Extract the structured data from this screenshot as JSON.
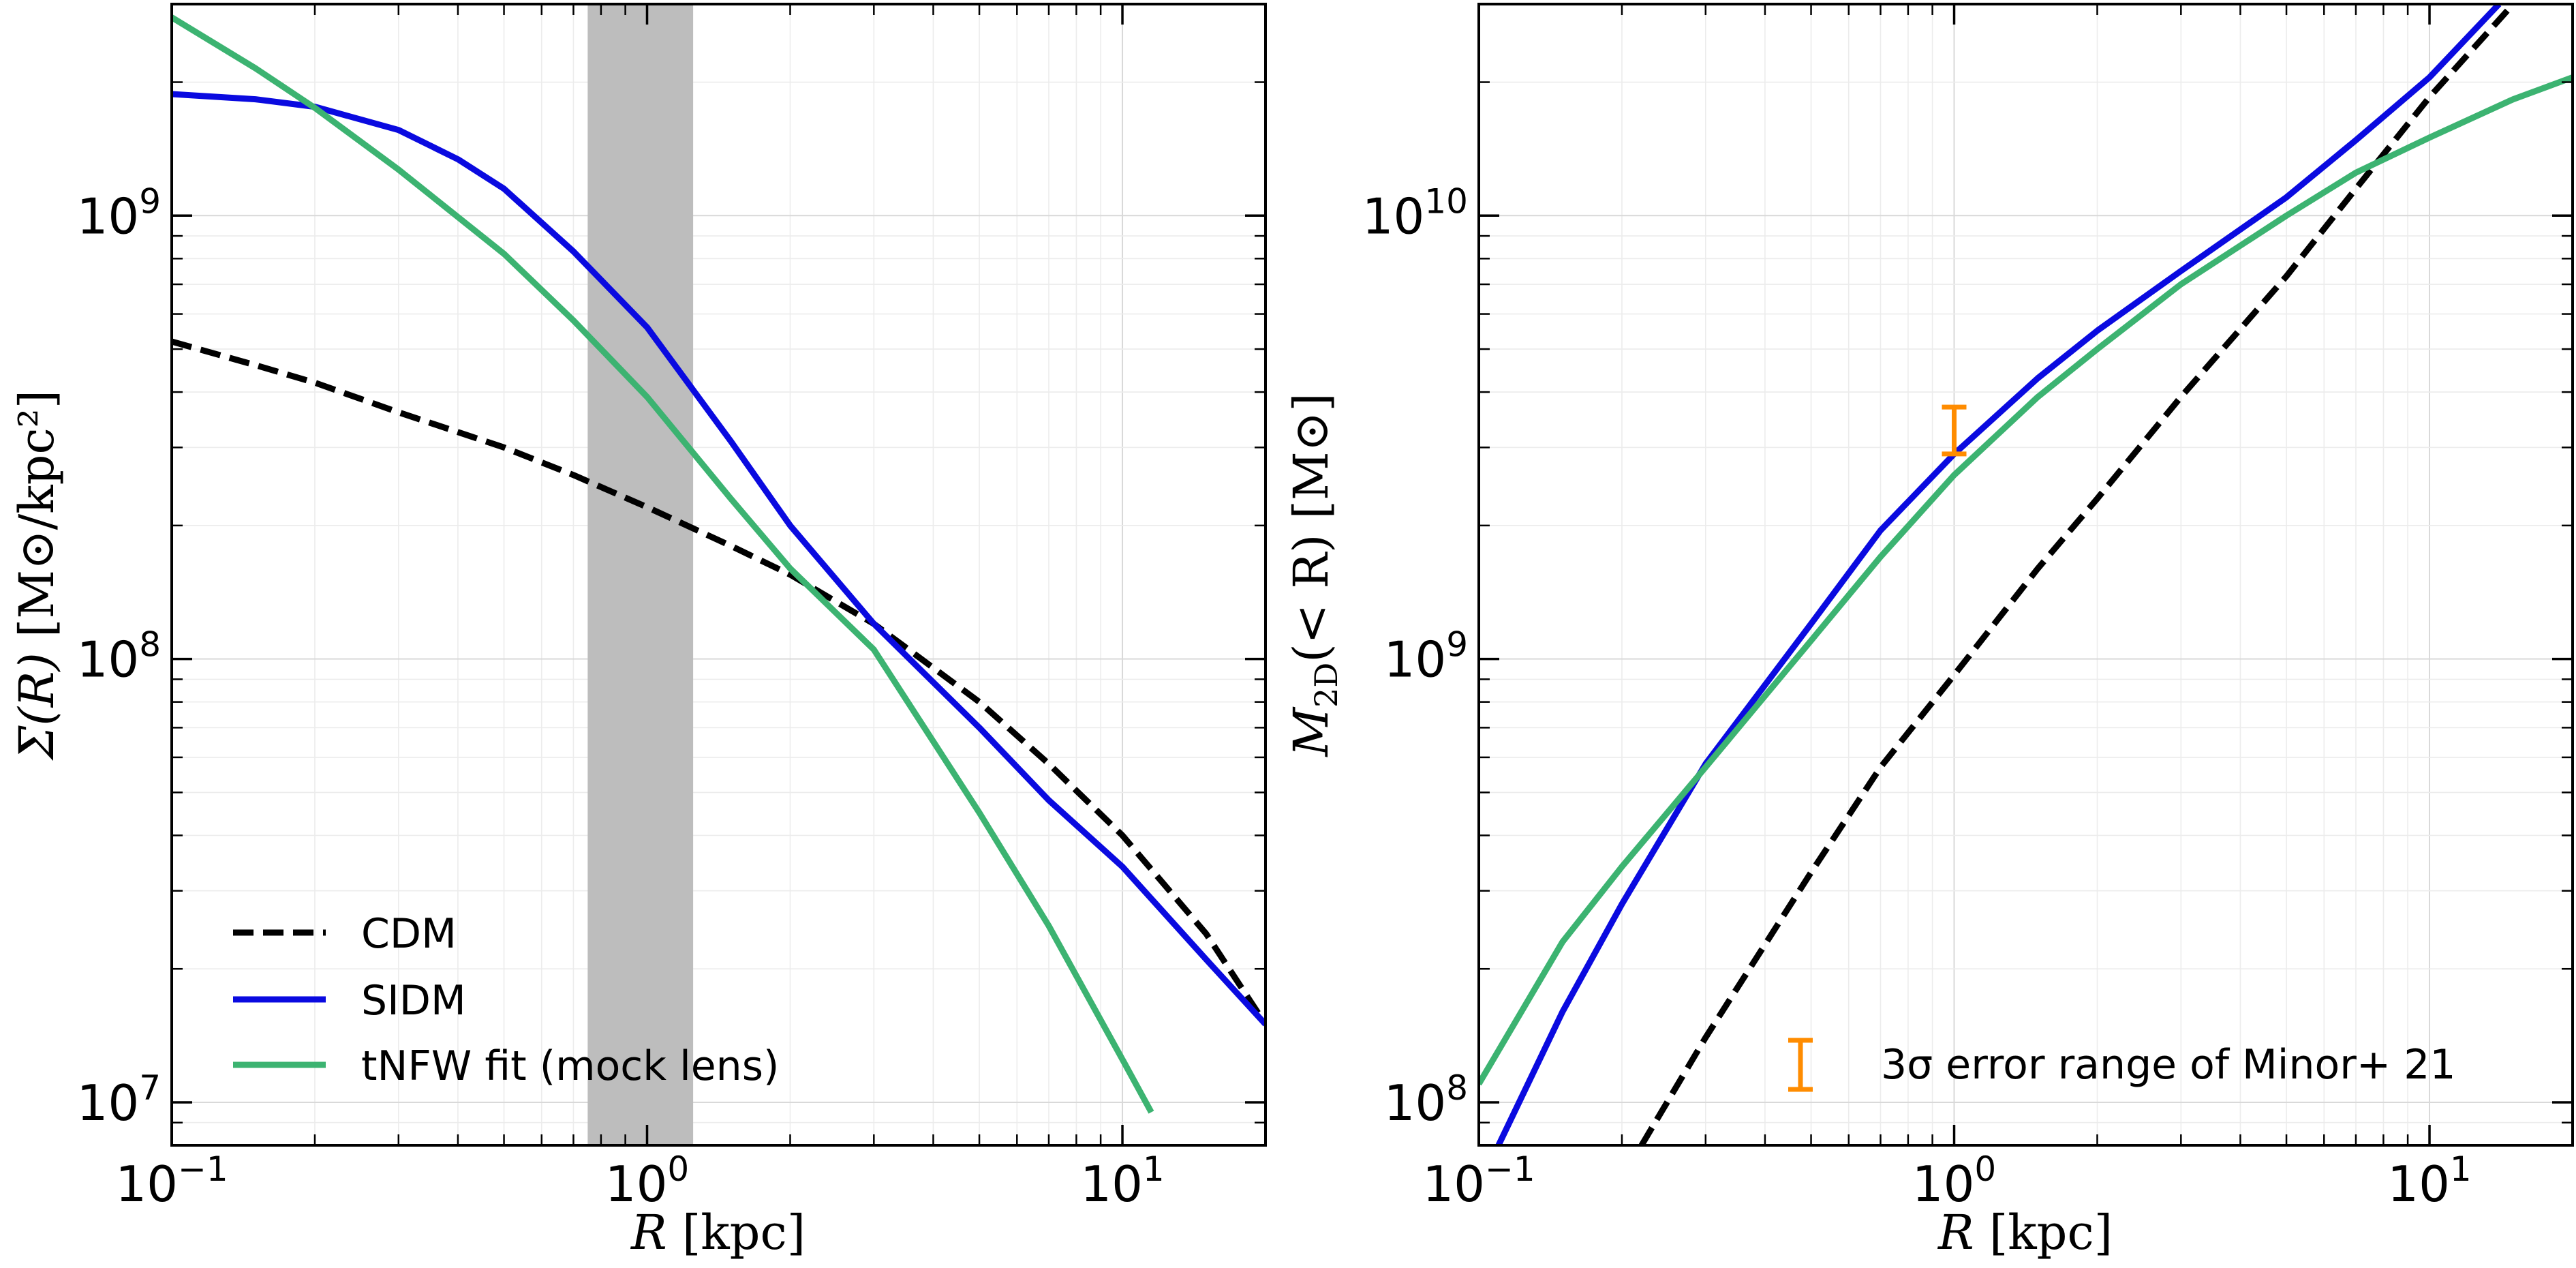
{
  "chart_data": [
    {
      "type": "line",
      "panel": "left",
      "title": "",
      "xlabel": "R [kpc]",
      "ylabel": "Σ(R) [M⊙/kpc²]",
      "xscale": "log",
      "yscale": "log",
      "xlim": [
        0.1,
        20
      ],
      "ylim": [
        8000000,
        3000000000
      ],
      "x_ticks": [
        {
          "base": "10",
          "exp": "−1",
          "value": 0.1
        },
        {
          "base": "10",
          "exp": "0",
          "value": 1
        },
        {
          "base": "10",
          "exp": "1",
          "value": 10
        }
      ],
      "y_ticks": [
        {
          "base": "10",
          "exp": "7",
          "value": 10000000
        },
        {
          "base": "10",
          "exp": "8",
          "value": 100000000
        },
        {
          "base": "10",
          "exp": "9",
          "value": 1000000000
        }
      ],
      "grid": true,
      "shaded_band": {
        "x_from": 0.75,
        "x_to": 1.25,
        "color": "#bdbdbd"
      },
      "legend_location": "lower-left",
      "series": [
        {
          "name": "CDM",
          "color": "#000000",
          "style": "dashed",
          "x": [
            0.1,
            0.15,
            0.2,
            0.3,
            0.5,
            0.7,
            1,
            1.5,
            2,
            3,
            5,
            7,
            10,
            15,
            20
          ],
          "y": [
            520000000,
            460000000,
            420000000,
            360000000,
            300000000,
            260000000,
            220000000,
            180000000,
            155000000,
            120000000,
            80000000,
            58000000,
            40000000,
            24000000,
            15000000
          ]
        },
        {
          "name": "SIDM",
          "color": "#0a0ae0",
          "style": "solid",
          "x": [
            0.1,
            0.15,
            0.2,
            0.3,
            0.4,
            0.5,
            0.7,
            1,
            1.5,
            2,
            3,
            5,
            7,
            10,
            15,
            20
          ],
          "y": [
            1880000000,
            1830000000,
            1760000000,
            1560000000,
            1340000000,
            1150000000,
            830000000,
            560000000,
            310000000,
            200000000,
            120000000,
            70000000,
            48000000,
            34000000,
            21000000,
            15000000
          ]
        },
        {
          "name": "tNFW fit (mock lens)",
          "color": "#3cb371",
          "style": "solid",
          "x": [
            0.1,
            0.15,
            0.2,
            0.3,
            0.5,
            0.7,
            1,
            1.5,
            2,
            3,
            5,
            7,
            10,
            11.5
          ],
          "y": [
            2800000000,
            2150000000,
            1750000000,
            1270000000,
            820000000,
            580000000,
            390000000,
            230000000,
            160000000,
            105000000,
            45000000,
            25000000,
            12500000,
            9500000
          ]
        }
      ]
    },
    {
      "type": "line",
      "panel": "right",
      "title": "",
      "xlabel": "R [kpc]",
      "ylabel": "M2D(<R) [M⊙]",
      "xscale": "log",
      "yscale": "log",
      "xlim": [
        0.1,
        20
      ],
      "ylim": [
        80000000,
        30000000000
      ],
      "x_ticks": [
        {
          "base": "10",
          "exp": "−1",
          "value": 0.1
        },
        {
          "base": "10",
          "exp": "0",
          "value": 1
        },
        {
          "base": "10",
          "exp": "1",
          "value": 10
        }
      ],
      "y_ticks": [
        {
          "base": "10",
          "exp": "8",
          "value": 100000000
        },
        {
          "base": "10",
          "exp": "9",
          "value": 1000000000
        },
        {
          "base": "10",
          "exp": "10",
          "value": 10000000000
        }
      ],
      "grid": true,
      "series": [
        {
          "name": "CDM",
          "color": "#000000",
          "style": "dashed",
          "x": [
            0.22,
            0.3,
            0.5,
            0.7,
            1,
            1.5,
            2,
            3,
            5,
            7,
            10,
            15
          ],
          "y": [
            80000000,
            140000000,
            330000000,
            570000000,
            920000000,
            1600000000,
            2300000000,
            3900000000,
            7300000000,
            11500000000,
            18500000000,
            30000000000
          ]
        },
        {
          "name": "SIDM",
          "color": "#0a0ae0",
          "style": "solid",
          "x": [
            0.11,
            0.15,
            0.2,
            0.3,
            0.5,
            0.7,
            1,
            1.5,
            2,
            3,
            5,
            7,
            10,
            14
          ],
          "y": [
            80000000,
            160000000,
            280000000,
            580000000,
            1200000000,
            1950000000,
            2900000000,
            4300000000,
            5500000000,
            7500000000,
            11000000000,
            14800000000,
            20500000000,
            30000000000
          ]
        },
        {
          "name": "tNFW fit (mock lens)",
          "color": "#3cb371",
          "style": "solid",
          "x": [
            0.1,
            0.15,
            0.2,
            0.3,
            0.5,
            0.7,
            1,
            1.5,
            2,
            3,
            5,
            7,
            10,
            15,
            20
          ],
          "y": [
            110000000,
            230000000,
            340000000,
            570000000,
            1100000000,
            1700000000,
            2600000000,
            3900000000,
            5000000000,
            7000000000,
            10000000000,
            12500000000,
            15000000000,
            18300000000,
            20500000000
          ]
        }
      ],
      "error_bar": {
        "x": 1.0,
        "y_low": 2900000000,
        "y_high": 3700000000,
        "color": "#ff8c00"
      },
      "annotation": {
        "marker_label": "3σ error range of Minor+ 21",
        "location": "lower-right"
      }
    }
  ],
  "legend": {
    "entries": [
      {
        "label": "CDM",
        "color": "#000000",
        "style": "dashed"
      },
      {
        "label": "SIDM",
        "color": "#0a0ae0",
        "style": "solid"
      },
      {
        "label": "tNFW fit (mock lens)",
        "color": "#3cb371",
        "style": "solid"
      }
    ]
  },
  "labels": {
    "left_xlabel_var": "R",
    "left_xlabel_unit": " [kpc]",
    "left_ylabel_var": "Σ(R)",
    "left_ylabel_unit": " [M⊙/kpc²]",
    "right_xlabel_var": "R",
    "right_xlabel_unit": " [kpc]",
    "right_ylabel_var": "M",
    "right_ylabel_sub": "2D",
    "right_ylabel_rest": "(< R) [M⊙]",
    "annotation_text": "3σ error range of Minor+ 21"
  }
}
